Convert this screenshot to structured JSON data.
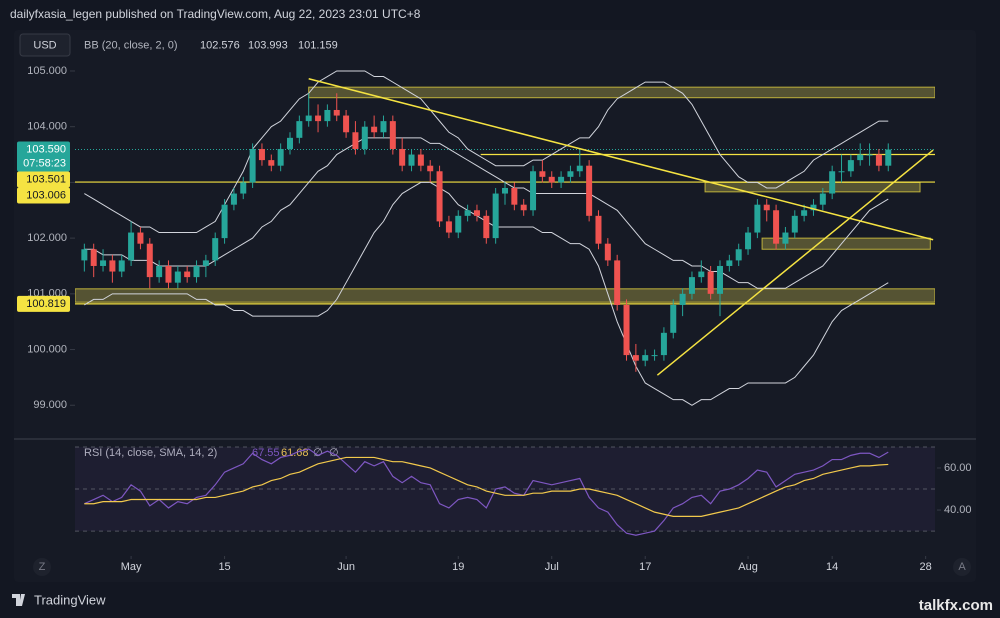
{
  "chart_data": {
    "type": "candlestick",
    "title": "dailyfxasia_legen published on TradingView.com, Aug 22, 2023 23:01 UTC+8",
    "symbol": "USD",
    "bb": {
      "name": "BB (20, close, 2, 0)",
      "values": [
        102.576,
        103.993,
        101.159
      ]
    },
    "up_color": "#26a69a",
    "down_color": "#ef5350",
    "band_color": "#d1d4dc",
    "level_color": "#f5e342",
    "zone_color": "#8a8440",
    "xlim": [
      -1,
      91
    ],
    "xticks": [
      {
        "value": 5,
        "label": "May"
      },
      15,
      {
        "value": 28,
        "label": "Jun"
      },
      {
        "value": 40,
        "label": "19"
      },
      {
        "value": 50,
        "label": "Jul"
      },
      {
        "value": 60,
        "label": "17"
      },
      {
        "value": 71,
        "label": "Aug"
      },
      {
        "value": 80,
        "label": "14"
      },
      {
        "value": 90,
        "label": "28"
      }
    ],
    "ylim": [
      98.43,
      105.61
    ],
    "yticks": [
      {
        "value": 99,
        "label": "99.000"
      },
      {
        "value": 100,
        "label": "100.000"
      },
      {
        "value": 101,
        "label": "101.000"
      },
      {
        "value": 102,
        "label": "102.000"
      },
      {
        "value": 103,
        "label": "103.000"
      },
      {
        "value": 104,
        "label": "104.000"
      },
      {
        "value": 105,
        "label": "105.000"
      }
    ],
    "grid": false,
    "ohlc": [
      [
        101.6,
        101.9,
        101.4,
        101.8
      ],
      [
        101.8,
        101.9,
        101.3,
        101.5
      ],
      [
        101.5,
        101.8,
        101.4,
        101.6
      ],
      [
        101.6,
        101.7,
        101.2,
        101.4
      ],
      [
        101.4,
        101.7,
        101.3,
        101.6
      ],
      [
        101.6,
        102.3,
        101.5,
        102.1
      ],
      [
        102.1,
        102.2,
        101.8,
        101.9
      ],
      [
        101.9,
        102.0,
        101.1,
        101.3
      ],
      [
        101.3,
        101.6,
        101.2,
        101.5
      ],
      [
        101.5,
        101.6,
        101.1,
        101.2
      ],
      [
        101.2,
        101.5,
        101.1,
        101.4
      ],
      [
        101.4,
        101.5,
        101.2,
        101.3
      ],
      [
        101.3,
        101.6,
        101.2,
        101.5
      ],
      [
        101.5,
        101.7,
        101.3,
        101.6
      ],
      [
        101.6,
        102.1,
        101.5,
        102.0
      ],
      [
        102.0,
        102.7,
        101.9,
        102.6
      ],
      [
        102.6,
        102.9,
        102.5,
        102.8
      ],
      [
        102.8,
        103.1,
        102.7,
        103.0
      ],
      [
        103.0,
        103.7,
        102.9,
        103.6
      ],
      [
        103.6,
        103.7,
        103.3,
        103.4
      ],
      [
        103.4,
        103.5,
        103.2,
        103.3
      ],
      [
        103.3,
        103.7,
        103.2,
        103.6
      ],
      [
        103.6,
        103.9,
        103.5,
        103.8
      ],
      [
        103.8,
        104.2,
        103.7,
        104.1
      ],
      [
        104.1,
        104.6,
        104.0,
        104.2
      ],
      [
        104.2,
        104.4,
        103.9,
        104.1
      ],
      [
        104.1,
        104.4,
        104.0,
        104.3
      ],
      [
        104.3,
        104.6,
        104.1,
        104.2
      ],
      [
        104.2,
        104.3,
        103.8,
        103.9
      ],
      [
        103.9,
        104.1,
        103.5,
        103.6
      ],
      [
        103.6,
        104.1,
        103.5,
        104.0
      ],
      [
        104.0,
        104.2,
        103.8,
        103.9
      ],
      [
        103.9,
        104.2,
        103.8,
        104.1
      ],
      [
        104.1,
        104.2,
        103.5,
        103.6
      ],
      [
        103.6,
        103.8,
        103.2,
        103.3
      ],
      [
        103.3,
        103.6,
        103.2,
        103.5
      ],
      [
        103.5,
        103.6,
        103.2,
        103.3
      ],
      [
        103.3,
        103.4,
        103.0,
        103.2
      ],
      [
        103.2,
        103.3,
        102.2,
        102.3
      ],
      [
        102.3,
        102.4,
        102.0,
        102.1
      ],
      [
        102.1,
        102.5,
        102.0,
        102.4
      ],
      [
        102.4,
        102.6,
        102.3,
        102.5
      ],
      [
        102.5,
        102.6,
        102.3,
        102.4
      ],
      [
        102.4,
        102.5,
        101.9,
        102.0
      ],
      [
        102.0,
        102.9,
        101.9,
        102.8
      ],
      [
        102.8,
        103.0,
        102.6,
        102.9
      ],
      [
        102.9,
        103.0,
        102.5,
        102.6
      ],
      [
        102.6,
        102.7,
        102.4,
        102.5
      ],
      [
        102.5,
        103.3,
        102.4,
        103.2
      ],
      [
        103.2,
        103.4,
        103.0,
        103.1
      ],
      [
        103.1,
        103.2,
        102.9,
        103.0
      ],
      [
        103.0,
        103.2,
        102.9,
        103.1
      ],
      [
        103.1,
        103.3,
        103.0,
        103.2
      ],
      [
        103.2,
        103.6,
        103.1,
        103.3
      ],
      [
        103.3,
        103.4,
        102.3,
        102.4
      ],
      [
        102.4,
        102.5,
        101.8,
        101.9
      ],
      [
        101.9,
        102.0,
        101.5,
        101.6
      ],
      [
        101.6,
        101.7,
        100.7,
        100.8
      ],
      [
        100.8,
        100.9,
        99.8,
        99.9
      ],
      [
        99.9,
        100.1,
        99.6,
        99.8
      ],
      [
        99.8,
        100.0,
        99.7,
        99.9
      ],
      [
        99.9,
        100.0,
        99.8,
        99.9
      ],
      [
        99.9,
        100.4,
        99.8,
        100.3
      ],
      [
        100.3,
        100.9,
        100.2,
        100.8
      ],
      [
        100.8,
        101.1,
        100.6,
        101.0
      ],
      [
        101.0,
        101.4,
        100.9,
        101.3
      ],
      [
        101.3,
        101.6,
        101.2,
        101.4
      ],
      [
        101.4,
        101.5,
        100.9,
        101.0
      ],
      [
        101.0,
        101.6,
        100.6,
        101.5
      ],
      [
        101.5,
        101.7,
        101.4,
        101.6
      ],
      [
        101.6,
        101.9,
        101.5,
        101.8
      ],
      [
        101.8,
        102.2,
        101.7,
        102.1
      ],
      [
        102.1,
        102.7,
        102.0,
        102.6
      ],
      [
        102.6,
        102.7,
        102.3,
        102.5
      ],
      [
        102.5,
        102.6,
        101.8,
        101.9
      ],
      [
        101.9,
        102.2,
        101.8,
        102.1
      ],
      [
        102.1,
        102.5,
        102.0,
        102.4
      ],
      [
        102.4,
        102.6,
        102.3,
        102.5
      ],
      [
        102.5,
        102.7,
        102.4,
        102.6
      ],
      [
        102.6,
        102.9,
        102.5,
        102.8
      ],
      [
        102.8,
        103.3,
        102.7,
        103.2
      ],
      [
        103.2,
        103.5,
        103.0,
        103.2
      ],
      [
        103.2,
        103.5,
        103.1,
        103.4
      ],
      [
        103.4,
        103.7,
        103.3,
        103.5
      ],
      [
        103.5,
        103.7,
        103.3,
        103.5
      ],
      [
        103.5,
        103.6,
        103.2,
        103.3
      ],
      [
        103.3,
        103.7,
        103.2,
        103.59
      ]
    ],
    "bands": {
      "upper": [
        102.8,
        102.7,
        102.6,
        102.5,
        102.4,
        102.3,
        102.2,
        102.2,
        102.1,
        102.1,
        102.1,
        102.1,
        102.1,
        102.2,
        102.3,
        102.6,
        102.9,
        103.2,
        103.6,
        103.8,
        104.0,
        104.1,
        104.3,
        104.5,
        104.6,
        104.8,
        104.9,
        105.0,
        105.0,
        105.0,
        105.0,
        104.9,
        104.9,
        104.8,
        104.7,
        104.6,
        104.5,
        104.3,
        104.1,
        103.9,
        103.8,
        103.6,
        103.5,
        103.4,
        103.3,
        103.3,
        103.3,
        103.3,
        103.4,
        103.4,
        103.5,
        103.6,
        103.7,
        103.8,
        103.8,
        104.0,
        104.3,
        104.5,
        104.6,
        104.7,
        104.8,
        104.8,
        104.8,
        104.7,
        104.6,
        104.4,
        104.1,
        103.8,
        103.5,
        103.3,
        103.1,
        103.0,
        103.0,
        102.9,
        102.9,
        103.0,
        103.1,
        103.2,
        103.4,
        103.5,
        103.6,
        103.7,
        103.8,
        103.9,
        104.0,
        104.1,
        104.1
      ],
      "middle": [
        101.8,
        101.8,
        101.7,
        101.7,
        101.7,
        101.6,
        101.6,
        101.6,
        101.5,
        101.5,
        101.5,
        101.5,
        101.5,
        101.5,
        101.6,
        101.7,
        101.8,
        101.9,
        102.0,
        102.2,
        102.3,
        102.5,
        102.6,
        102.8,
        103.0,
        103.2,
        103.3,
        103.5,
        103.6,
        103.7,
        103.8,
        103.8,
        103.8,
        103.8,
        103.8,
        103.8,
        103.8,
        103.7,
        103.7,
        103.6,
        103.5,
        103.4,
        103.3,
        103.2,
        103.1,
        103.0,
        102.9,
        102.9,
        102.8,
        102.8,
        102.8,
        102.8,
        102.8,
        102.8,
        102.8,
        102.7,
        102.6,
        102.5,
        102.3,
        102.1,
        101.9,
        101.8,
        101.7,
        101.6,
        101.6,
        101.5,
        101.5,
        101.4,
        101.4,
        101.3,
        101.2,
        101.2,
        101.1,
        101.1,
        101.1,
        101.1,
        101.2,
        101.3,
        101.4,
        101.5,
        101.7,
        101.9,
        102.1,
        102.3,
        102.5,
        102.6,
        102.7
      ],
      "lower": [
        100.8,
        100.9,
        100.9,
        101.0,
        101.0,
        101.0,
        101.0,
        101.0,
        101.0,
        101.0,
        101.0,
        101.0,
        100.9,
        100.9,
        100.8,
        100.8,
        100.7,
        100.7,
        100.6,
        100.6,
        100.6,
        100.6,
        100.6,
        100.6,
        100.6,
        100.6,
        100.7,
        100.9,
        101.2,
        101.5,
        101.8,
        102.1,
        102.3,
        102.6,
        102.8,
        102.9,
        103.0,
        103.0,
        102.9,
        102.8,
        102.6,
        102.5,
        102.4,
        102.3,
        102.2,
        102.2,
        102.2,
        102.2,
        102.2,
        102.1,
        102.1,
        102.0,
        101.9,
        101.9,
        101.8,
        101.5,
        101.0,
        100.5,
        100.1,
        99.7,
        99.4,
        99.3,
        99.2,
        99.1,
        99.1,
        99.0,
        99.1,
        99.1,
        99.2,
        99.3,
        99.3,
        99.4,
        99.4,
        99.4,
        99.4,
        99.4,
        99.5,
        99.7,
        99.9,
        100.2,
        100.5,
        100.7,
        100.8,
        100.9,
        101.0,
        101.1,
        101.2
      ]
    },
    "zones": [
      {
        "x": [
          24,
          91
        ],
        "y": [
          104.52,
          104.71
        ]
      },
      {
        "x": [
          66.4,
          89.4
        ],
        "y": [
          102.83,
          103.0
        ]
      },
      {
        "x": [
          72.5,
          90.5
        ],
        "y": [
          101.8,
          102.0
        ]
      },
      {
        "x": [
          -1,
          91
        ],
        "y": [
          100.85,
          101.09
        ]
      }
    ],
    "trendlines": [
      {
        "x": [
          24,
          90.8
        ],
        "y": [
          104.86,
          101.97
        ]
      },
      {
        "x": [
          61.3,
          90.8
        ],
        "y": [
          99.54,
          103.58
        ]
      }
    ],
    "last": {
      "value": 103.59,
      "label": "103.590",
      "countdown": "07:58:23"
    },
    "levels": [
      {
        "value": 103.501,
        "x0": 42.4
      },
      {
        "value": 103.006,
        "x0": -1
      },
      {
        "value": 100.819,
        "x0": -1
      }
    ],
    "rsi": {
      "name": "RSI (14, close, SMA, 14, 2)",
      "color": "#7e57c2",
      "sma_color": "#f2c94c",
      "last": [
        67.55,
        61.68
      ],
      "na": [
        "∅",
        "∅"
      ],
      "ylim": [
        24.8,
        71.4
      ],
      "yticks": [
        {
          "value": 40,
          "label": "40.00"
        },
        {
          "value": 60,
          "label": "60.00"
        }
      ],
      "levels": [
        30,
        50,
        70
      ],
      "values": [
        43,
        45,
        47,
        44,
        46,
        52,
        49,
        42,
        45,
        41,
        44,
        43,
        46,
        47,
        52,
        58,
        60,
        62,
        67,
        64,
        62,
        65,
        66,
        68,
        69,
        66,
        68,
        66,
        62,
        58,
        63,
        61,
        63,
        56,
        53,
        56,
        53,
        52,
        43,
        41,
        45,
        46,
        45,
        41,
        50,
        51,
        48,
        47,
        54,
        53,
        52,
        53,
        54,
        55,
        46,
        41,
        39,
        33,
        29,
        28,
        29,
        30,
        35,
        41,
        43,
        46,
        47,
        43,
        49,
        50,
        52,
        55,
        59,
        58,
        51,
        54,
        57,
        58,
        59,
        61,
        64,
        64,
        66,
        67,
        67,
        65,
        67.55
      ],
      "sma": [
        43,
        43,
        44,
        44,
        44,
        45,
        45,
        45,
        45,
        45,
        45,
        45,
        45,
        46,
        46,
        47,
        48,
        49,
        51,
        52,
        54,
        55,
        57,
        58,
        60,
        62,
        63,
        64,
        65,
        65,
        65,
        65,
        64,
        63,
        63,
        62,
        61,
        60,
        58,
        56,
        54,
        52,
        51,
        49,
        48,
        47,
        47,
        47,
        48,
        48,
        49,
        49,
        49,
        50,
        50,
        49,
        48,
        47,
        45,
        43,
        41,
        39,
        38,
        37,
        37,
        37,
        37,
        38,
        39,
        40,
        41,
        43,
        45,
        47,
        49,
        51,
        52,
        54,
        55,
        57,
        58,
        59,
        60,
        61,
        61,
        61.4,
        61.68
      ]
    },
    "ui": {
      "left_button": "Z",
      "right_button": "A"
    },
    "footer": {
      "brand": "TradingView",
      "watermark": "talkfx.com"
    }
  }
}
